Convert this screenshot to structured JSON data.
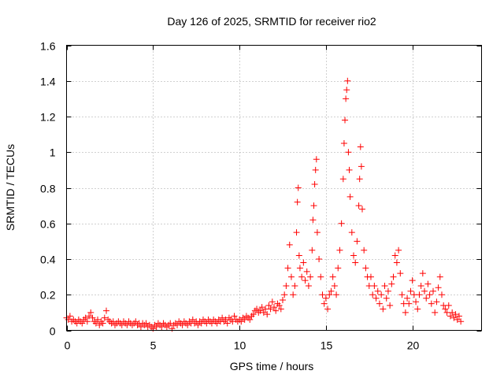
{
  "chart_data": {
    "type": "scatter",
    "title": "Day 126 of 2025, SRMTID for receiver rio2",
    "xlabel": "GPS time / hours",
    "ylabel": "SRMTID / TECUs",
    "xlim": [
      0,
      24
    ],
    "ylim": [
      0,
      1.6
    ],
    "x_ticks": [
      0,
      5,
      10,
      15,
      20
    ],
    "x_tick_labels": [
      "0",
      "5",
      "10",
      "15",
      "20"
    ],
    "y_ticks": [
      0,
      0.2,
      0.4,
      0.6,
      0.8,
      1.0,
      1.2,
      1.4,
      1.6
    ],
    "y_tick_labels": [
      "0",
      "0.2",
      "0.4",
      "0.6",
      "0.8",
      "1",
      "1.2",
      "1.4",
      "1.6"
    ],
    "grid": true,
    "marker": "+",
    "color": "#ff0000",
    "series": [
      {
        "name": "SRMTID",
        "points": [
          [
            0.0,
            0.07
          ],
          [
            0.1,
            0.06
          ],
          [
            0.2,
            0.08
          ],
          [
            0.3,
            0.05
          ],
          [
            0.4,
            0.06
          ],
          [
            0.5,
            0.05
          ],
          [
            0.6,
            0.04
          ],
          [
            0.7,
            0.06
          ],
          [
            0.8,
            0.05
          ],
          [
            0.9,
            0.04
          ],
          [
            1.0,
            0.06
          ],
          [
            1.1,
            0.07
          ],
          [
            1.2,
            0.05
          ],
          [
            1.3,
            0.08
          ],
          [
            1.4,
            0.1
          ],
          [
            1.5,
            0.07
          ],
          [
            1.6,
            0.05
          ],
          [
            1.7,
            0.04
          ],
          [
            1.8,
            0.06
          ],
          [
            1.9,
            0.03
          ],
          [
            2.0,
            0.05
          ],
          [
            2.1,
            0.04
          ],
          [
            2.2,
            0.07
          ],
          [
            2.3,
            0.11
          ],
          [
            2.4,
            0.06
          ],
          [
            2.5,
            0.05
          ],
          [
            2.6,
            0.04
          ],
          [
            2.7,
            0.05
          ],
          [
            2.8,
            0.03
          ],
          [
            2.9,
            0.04
          ],
          [
            3.0,
            0.05
          ],
          [
            3.1,
            0.04
          ],
          [
            3.2,
            0.03
          ],
          [
            3.3,
            0.05
          ],
          [
            3.4,
            0.04
          ],
          [
            3.5,
            0.03
          ],
          [
            3.6,
            0.05
          ],
          [
            3.7,
            0.04
          ],
          [
            3.8,
            0.03
          ],
          [
            3.9,
            0.04
          ],
          [
            4.0,
            0.05
          ],
          [
            4.1,
            0.03
          ],
          [
            4.2,
            0.04
          ],
          [
            4.3,
            0.02
          ],
          [
            4.4,
            0.04
          ],
          [
            4.5,
            0.03
          ],
          [
            4.6,
            0.04
          ],
          [
            4.7,
            0.02
          ],
          [
            4.8,
            0.03
          ],
          [
            4.9,
            0.02
          ],
          [
            5.0,
            0.01
          ],
          [
            5.1,
            0.03
          ],
          [
            5.2,
            0.02
          ],
          [
            5.3,
            0.04
          ],
          [
            5.4,
            0.03
          ],
          [
            5.5,
            0.02
          ],
          [
            5.6,
            0.04
          ],
          [
            5.7,
            0.03
          ],
          [
            5.8,
            0.02
          ],
          [
            5.9,
            0.03
          ],
          [
            6.0,
            0.04
          ],
          [
            6.1,
            0.01
          ],
          [
            6.2,
            0.03
          ],
          [
            6.3,
            0.04
          ],
          [
            6.4,
            0.03
          ],
          [
            6.5,
            0.05
          ],
          [
            6.6,
            0.04
          ],
          [
            6.7,
            0.03
          ],
          [
            6.8,
            0.05
          ],
          [
            6.9,
            0.04
          ],
          [
            7.0,
            0.03
          ],
          [
            7.1,
            0.05
          ],
          [
            7.2,
            0.04
          ],
          [
            7.3,
            0.06
          ],
          [
            7.4,
            0.04
          ],
          [
            7.5,
            0.05
          ],
          [
            7.6,
            0.03
          ],
          [
            7.7,
            0.05
          ],
          [
            7.8,
            0.04
          ],
          [
            7.9,
            0.06
          ],
          [
            8.0,
            0.05
          ],
          [
            8.1,
            0.04
          ],
          [
            8.2,
            0.06
          ],
          [
            8.3,
            0.05
          ],
          [
            8.4,
            0.04
          ],
          [
            8.5,
            0.06
          ],
          [
            8.6,
            0.05
          ],
          [
            8.7,
            0.04
          ],
          [
            8.8,
            0.06
          ],
          [
            8.9,
            0.05
          ],
          [
            9.0,
            0.07
          ],
          [
            9.1,
            0.05
          ],
          [
            9.2,
            0.06
          ],
          [
            9.3,
            0.04
          ],
          [
            9.4,
            0.07
          ],
          [
            9.5,
            0.06
          ],
          [
            9.6,
            0.05
          ],
          [
            9.7,
            0.08
          ],
          [
            9.8,
            0.06
          ],
          [
            9.9,
            0.05
          ],
          [
            10.0,
            0.06
          ],
          [
            10.1,
            0.05
          ],
          [
            10.2,
            0.07
          ],
          [
            10.3,
            0.06
          ],
          [
            10.4,
            0.08
          ],
          [
            10.5,
            0.07
          ],
          [
            10.6,
            0.06
          ],
          [
            10.7,
            0.08
          ],
          [
            10.8,
            0.09
          ],
          [
            10.9,
            0.11
          ],
          [
            11.0,
            0.12
          ],
          [
            11.1,
            0.1
          ],
          [
            11.2,
            0.11
          ],
          [
            11.3,
            0.13
          ],
          [
            11.4,
            0.1
          ],
          [
            11.5,
            0.12
          ],
          [
            11.6,
            0.09
          ],
          [
            11.7,
            0.14
          ],
          [
            11.8,
            0.12
          ],
          [
            11.9,
            0.16
          ],
          [
            12.0,
            0.13
          ],
          [
            12.1,
            0.11
          ],
          [
            12.2,
            0.15
          ],
          [
            12.3,
            0.14
          ],
          [
            12.4,
            0.12
          ],
          [
            12.5,
            0.17
          ],
          [
            12.6,
            0.2
          ],
          [
            12.7,
            0.25
          ],
          [
            12.8,
            0.35
          ],
          [
            12.9,
            0.48
          ],
          [
            13.0,
            0.3
          ],
          [
            13.1,
            0.2
          ],
          [
            13.2,
            0.25
          ],
          [
            13.3,
            0.55
          ],
          [
            13.35,
            0.72
          ],
          [
            13.4,
            0.8
          ],
          [
            13.45,
            0.42
          ],
          [
            13.5,
            0.35
          ],
          [
            13.6,
            0.3
          ],
          [
            13.7,
            0.38
          ],
          [
            13.8,
            0.28
          ],
          [
            13.9,
            0.33
          ],
          [
            14.0,
            0.25
          ],
          [
            14.1,
            0.3
          ],
          [
            14.2,
            0.45
          ],
          [
            14.25,
            0.62
          ],
          [
            14.3,
            0.7
          ],
          [
            14.35,
            0.82
          ],
          [
            14.4,
            0.9
          ],
          [
            14.45,
            0.96
          ],
          [
            14.5,
            0.55
          ],
          [
            14.6,
            0.4
          ],
          [
            14.7,
            0.3
          ],
          [
            14.8,
            0.2
          ],
          [
            14.9,
            0.15
          ],
          [
            15.0,
            0.18
          ],
          [
            15.1,
            0.12
          ],
          [
            15.2,
            0.2
          ],
          [
            15.3,
            0.22
          ],
          [
            15.4,
            0.3
          ],
          [
            15.5,
            0.25
          ],
          [
            15.6,
            0.2
          ],
          [
            15.7,
            0.35
          ],
          [
            15.8,
            0.45
          ],
          [
            15.9,
            0.6
          ],
          [
            16.0,
            0.85
          ],
          [
            16.05,
            1.05
          ],
          [
            16.1,
            1.18
          ],
          [
            16.15,
            1.3
          ],
          [
            16.2,
            1.35
          ],
          [
            16.25,
            1.4
          ],
          [
            16.3,
            1.0
          ],
          [
            16.35,
            0.9
          ],
          [
            16.4,
            0.75
          ],
          [
            16.5,
            0.55
          ],
          [
            16.6,
            0.42
          ],
          [
            16.7,
            0.38
          ],
          [
            16.8,
            0.5
          ],
          [
            16.9,
            0.7
          ],
          [
            16.95,
            0.85
          ],
          [
            17.0,
            1.03
          ],
          [
            17.05,
            0.92
          ],
          [
            17.1,
            0.68
          ],
          [
            17.2,
            0.45
          ],
          [
            17.3,
            0.35
          ],
          [
            17.4,
            0.3
          ],
          [
            17.5,
            0.25
          ],
          [
            17.6,
            0.3
          ],
          [
            17.7,
            0.2
          ],
          [
            17.8,
            0.25
          ],
          [
            17.9,
            0.18
          ],
          [
            18.0,
            0.22
          ],
          [
            18.1,
            0.15
          ],
          [
            18.2,
            0.2
          ],
          [
            18.3,
            0.12
          ],
          [
            18.4,
            0.25
          ],
          [
            18.5,
            0.18
          ],
          [
            18.6,
            0.22
          ],
          [
            18.7,
            0.14
          ],
          [
            18.8,
            0.26
          ],
          [
            18.9,
            0.3
          ],
          [
            19.0,
            0.42
          ],
          [
            19.1,
            0.38
          ],
          [
            19.2,
            0.45
          ],
          [
            19.3,
            0.32
          ],
          [
            19.4,
            0.2
          ],
          [
            19.5,
            0.15
          ],
          [
            19.6,
            0.1
          ],
          [
            19.7,
            0.18
          ],
          [
            19.8,
            0.15
          ],
          [
            19.9,
            0.22
          ],
          [
            20.0,
            0.28
          ],
          [
            20.1,
            0.2
          ],
          [
            20.2,
            0.16
          ],
          [
            20.3,
            0.12
          ],
          [
            20.4,
            0.2
          ],
          [
            20.5,
            0.25
          ],
          [
            20.6,
            0.32
          ],
          [
            20.7,
            0.22
          ],
          [
            20.8,
            0.18
          ],
          [
            20.9,
            0.26
          ],
          [
            21.0,
            0.2
          ],
          [
            21.1,
            0.15
          ],
          [
            21.2,
            0.22
          ],
          [
            21.3,
            0.1
          ],
          [
            21.4,
            0.16
          ],
          [
            21.5,
            0.24
          ],
          [
            21.6,
            0.3
          ],
          [
            21.7,
            0.2
          ],
          [
            21.8,
            0.14
          ],
          [
            21.9,
            0.12
          ],
          [
            22.0,
            0.1
          ],
          [
            22.1,
            0.14
          ],
          [
            22.2,
            0.08
          ],
          [
            22.3,
            0.1
          ],
          [
            22.4,
            0.07
          ],
          [
            22.5,
            0.09
          ],
          [
            22.6,
            0.06
          ],
          [
            22.7,
            0.08
          ],
          [
            22.8,
            0.05
          ]
        ]
      }
    ]
  }
}
